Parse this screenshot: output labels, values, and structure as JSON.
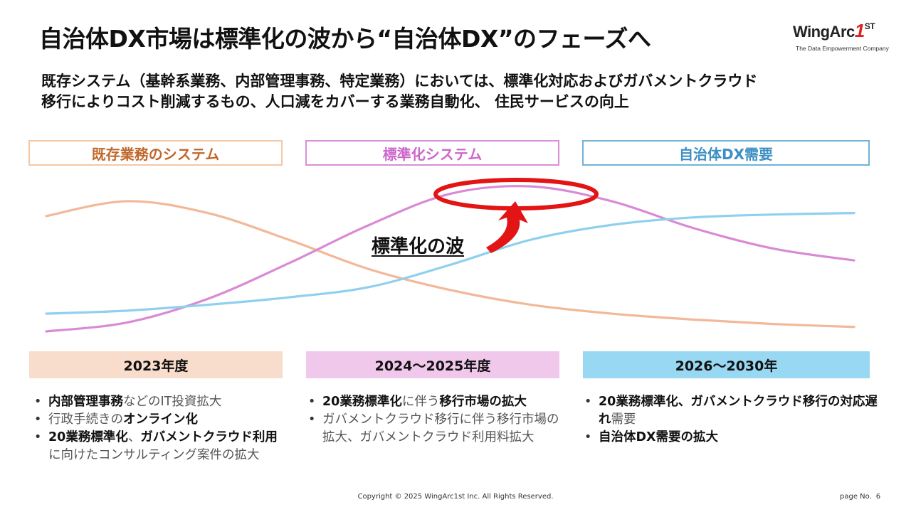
{
  "title": "自治体DX市場は標準化の波から“自治体DX”のフェーズへ",
  "logo": {
    "brand_text": "WingArc",
    "brand_mark": "1",
    "brand_suffix": "ST",
    "tagline": "The Data Empowerment Company",
    "accent_color": "#e02020"
  },
  "subtitle": {
    "line1": "既存システム（基幹系業務、内部管理事務、特定業務）においては、標準化対応およびガバメントクラウド",
    "line2": "移行によりコスト削減するもの、人口減をカバーする業務自動化、 住民サービスの向上"
  },
  "phases": [
    {
      "label": "既存業務のシステム",
      "color": "#c0672a",
      "border": "#f2c7a8"
    },
    {
      "label": "標準化システム",
      "color": "#cc66cc",
      "border": "#d98fd6"
    },
    {
      "label": "自治体DX需要",
      "color": "#3d8fc4",
      "border": "#6fb3d9"
    }
  ],
  "chart_data": {
    "type": "line",
    "series": [
      {
        "color": "#f2b898",
        "values": [
          0.78,
          0.88,
          0.8,
          0.62,
          0.42,
          0.28,
          0.18,
          0.12,
          0.08,
          0.05,
          0.03
        ]
      },
      {
        "color": "#d98ad6",
        "values": [
          0.0,
          0.06,
          0.22,
          0.46,
          0.72,
          0.93,
          0.98,
          0.88,
          0.7,
          0.56,
          0.48
        ]
      },
      {
        "color": "#8fd0ee",
        "values": [
          0.12,
          0.14,
          0.18,
          0.23,
          0.3,
          0.45,
          0.62,
          0.72,
          0.77,
          0.79,
          0.8
        ]
      }
    ],
    "annotation": "標準化の波",
    "highlight_color": "#e31414"
  },
  "years": [
    {
      "label": "2023年度",
      "bg": "#f8ddcc"
    },
    {
      "label": "2024～2025年度",
      "bg": "#f0c8ec"
    },
    {
      "label": "2026～2030年",
      "bg": "#99d8f2"
    }
  ],
  "bullets": {
    "col1": [
      [
        {
          "t": "内部管理事務",
          "b": true
        },
        {
          "t": "などのIT投資拡大",
          "b": false
        }
      ],
      [
        {
          "t": "行政手続きの",
          "b": false
        },
        {
          "t": "オンライン化",
          "b": true
        }
      ],
      [
        {
          "t": "20業務標準化",
          "b": true
        },
        {
          "t": "、",
          "b": false
        },
        {
          "t": "ガバメントクラウド利用",
          "b": true
        },
        {
          "t": "に向けたコンサルティング案件の拡大",
          "b": false
        }
      ]
    ],
    "col2": [
      [
        {
          "t": "20業務標準化",
          "b": true
        },
        {
          "t": "に伴う",
          "b": false
        },
        {
          "t": "移行市場の拡大",
          "b": true
        }
      ],
      [
        {
          "t": "ガバメントクラウド移行に伴う移行市場の拡大、ガバメントクラウド利用料拡大",
          "b": false
        }
      ]
    ],
    "col3": [
      [
        {
          "t": "20業務標準化、ガバメントクラウド移行の対応遅れ",
          "b": true
        },
        {
          "t": "需要",
          "b": false
        }
      ],
      [
        {
          "t": "自治体DX需要の拡大",
          "b": true
        }
      ]
    ]
  },
  "footer": {
    "copyright": "Copyright © 2025 WingArc1st Inc.  All Rights Reserved.",
    "page_label": "page No.",
    "page_number": "6"
  }
}
